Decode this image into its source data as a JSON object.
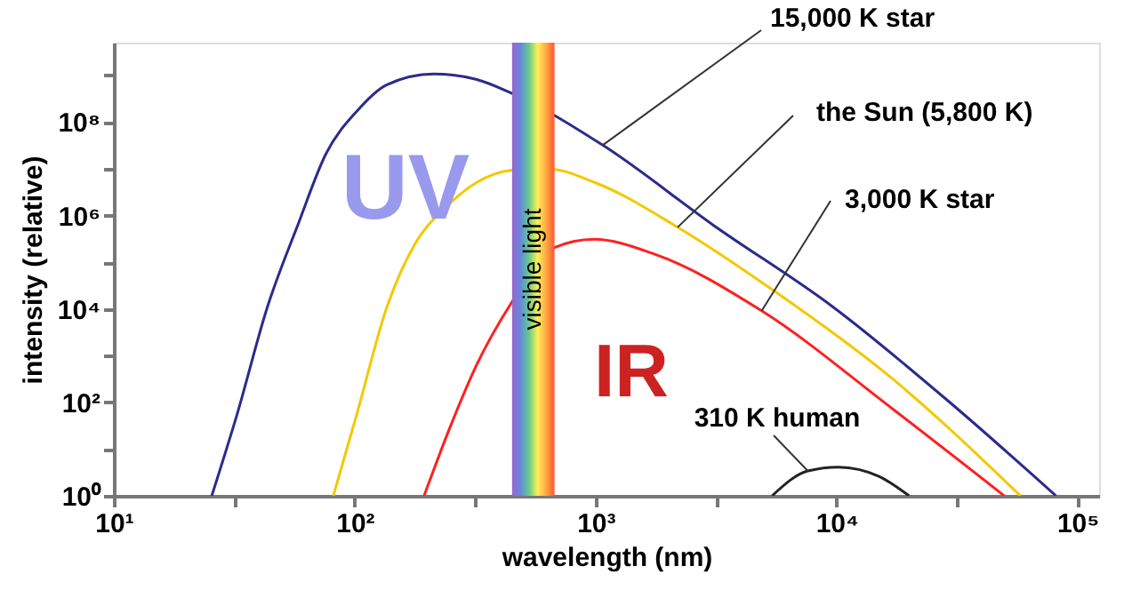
{
  "chart_data": {
    "type": "line",
    "xlabel": "wavelength (nm)",
    "ylabel": "intensity (relative)",
    "log": "xy",
    "xlim": [
      10,
      123000
    ],
    "ylim": [
      1,
      5000000000
    ],
    "xticks": [
      {
        "value": 10,
        "label": "10¹"
      },
      {
        "value": 31.6,
        "label": null
      },
      {
        "value": 100,
        "label": "10²"
      },
      {
        "value": 316,
        "label": null
      },
      {
        "value": 1000,
        "label": "10³"
      },
      {
        "value": 3160,
        "label": null
      },
      {
        "value": 10000,
        "label": "10⁴"
      },
      {
        "value": 31600,
        "label": null
      },
      {
        "value": 100000,
        "label": "10⁵"
      }
    ],
    "yticks": [
      {
        "value": 1,
        "label": "10⁰"
      },
      {
        "value": 10,
        "label": null
      },
      {
        "value": 100,
        "label": "10²"
      },
      {
        "value": 1000,
        "label": null
      },
      {
        "value": 10000,
        "label": "10⁴"
      },
      {
        "value": 100000,
        "label": null
      },
      {
        "value": 1000000,
        "label": "10⁶"
      },
      {
        "value": 10000000,
        "label": null
      },
      {
        "value": 100000000,
        "label": "10⁸"
      },
      {
        "value": 1000000000,
        "label": null
      }
    ],
    "grid": false,
    "legend": false,
    "marker": "none",
    "line_style": "solid",
    "series": [
      {
        "name": "15,000 K star",
        "color": "#2b2b8c",
        "x": [
          25.5,
          32.5,
          43.4,
          58,
          76,
          102,
          136,
          212,
          319,
          449,
          560,
          1070,
          3080,
          9670,
          29800,
          81500
        ],
        "values": [
          1,
          56,
          11000,
          620000,
          21000000,
          170000000,
          630000000,
          1070000000,
          820000000,
          410000000,
          null,
          32000000,
          620000,
          11000,
          96,
          1
        ]
      },
      {
        "name": "the Sun (5,800 K)",
        "color": "#f5c800",
        "x": [
          81.5,
          102,
          136,
          179,
          239,
          319,
          449,
          631,
          1000,
          2190,
          5400,
          17000,
          58000
        ],
        "values": [
          1,
          56,
          11000,
          260000,
          1500000,
          5000000,
          9300000,
          10000000,
          5000000,
          560000,
          26000,
          325,
          1
        ]
      },
      {
        "name": "3,000 K star",
        "color": "#ff2020",
        "x": [
          194,
          251,
          319,
          449,
          560,
          664,
          985,
          1750,
          4890,
          17000,
          49700
        ],
        "values": [
          1,
          33,
          600,
          14000,
          null,
          200000,
          310000,
          150000,
          9100,
          74,
          1
        ]
      },
      {
        "name": "310 K human",
        "color": "#222222",
        "x": [
          5400,
          7600,
          10200,
          15000,
          20000
        ],
        "values": [
          1,
          3.4,
          4.1,
          2.6,
          1
        ]
      }
    ],
    "bands": [
      {
        "axis": "x",
        "from": 450,
        "to": 675,
        "label": "visible light"
      }
    ],
    "annotations": [
      "UV",
      "IR"
    ]
  }
}
